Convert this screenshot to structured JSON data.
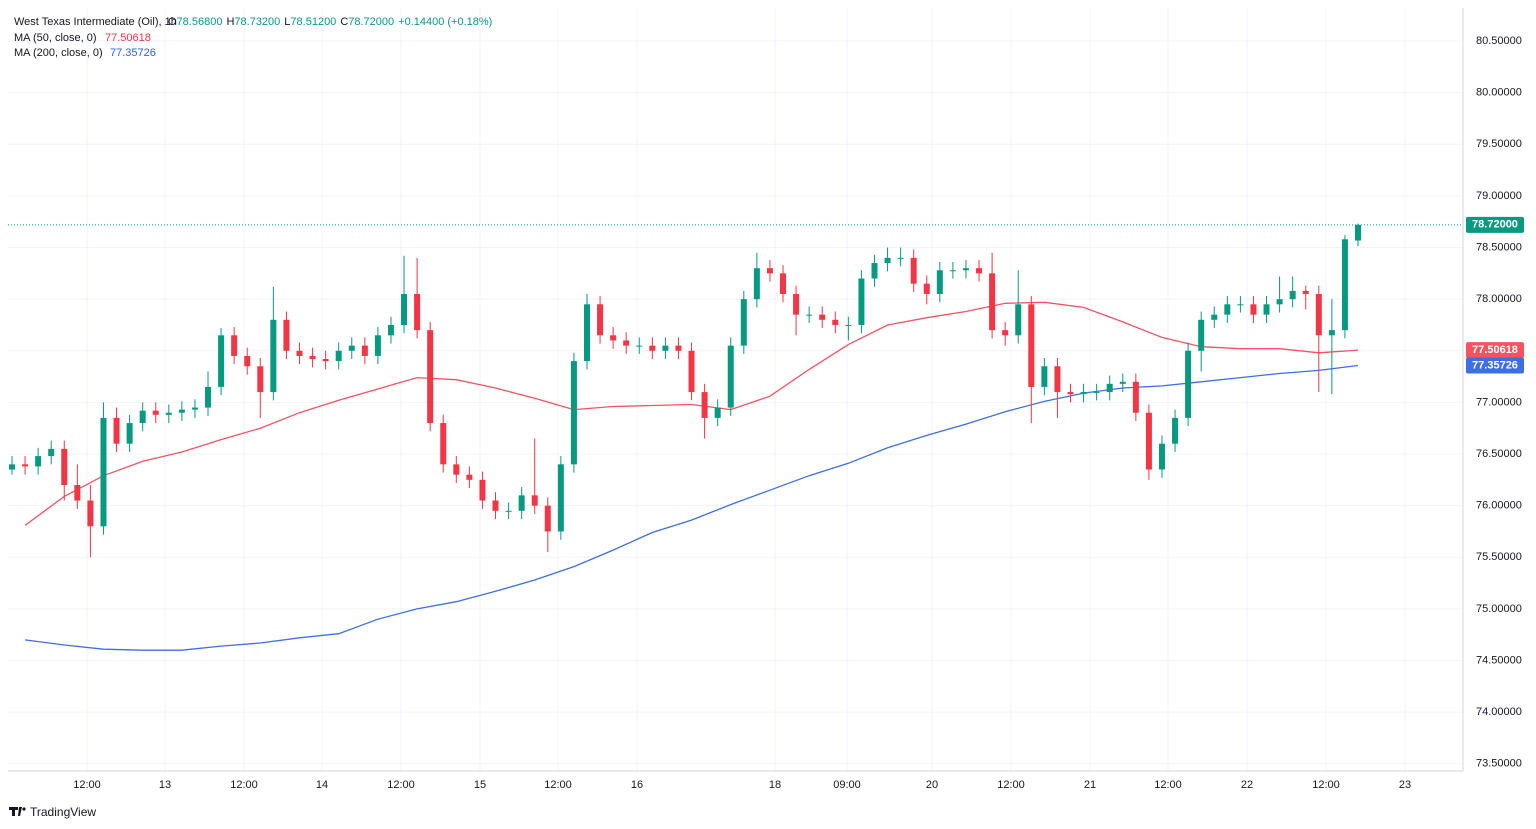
{
  "header": {
    "title": "West Texas Intermediate (Oil), 1h",
    "o_prefix": "O",
    "o": "78.56800",
    "h_prefix": "H",
    "h": "78.73200",
    "l_prefix": "L",
    "l": "78.51200",
    "c_prefix": "C",
    "c": "78.72000",
    "change": "+0.14400 (+0.18%)"
  },
  "footer": {
    "brand": "TradingView"
  },
  "chart_data": {
    "type": "candlestick",
    "up_color": "#089981",
    "down_color": "#f23645",
    "ylim": [
      73.43,
      80.82
    ],
    "yticks": [
      {
        "value": 73.5,
        "label": "73.50000"
      },
      {
        "value": 74,
        "label": "74.00000"
      },
      {
        "value": 74.5,
        "label": "74.50000"
      },
      {
        "value": 75,
        "label": "75.00000"
      },
      {
        "value": 75.5,
        "label": "75.50000"
      },
      {
        "value": 76,
        "label": "76.00000"
      },
      {
        "value": 76.5,
        "label": "76.50000"
      },
      {
        "value": 77,
        "label": "77.00000"
      },
      {
        "value": 77.5,
        "label": "77.50000"
      },
      {
        "value": 78,
        "label": "78.00000"
      },
      {
        "value": 78.5,
        "label": "78.50000"
      },
      {
        "value": 79,
        "label": "79.00000"
      },
      {
        "value": 79.5,
        "label": "79.50000"
      },
      {
        "value": 80,
        "label": "80.00000"
      },
      {
        "value": 80.5,
        "label": "80.50000"
      }
    ],
    "xticks": [
      "12:00",
      "13",
      "12:00",
      "14",
      "12:00",
      "15",
      "12:00",
      "16",
      "18",
      "09:00",
      "20",
      "12:00",
      "21",
      "12:00",
      "22",
      "12:00",
      "23"
    ],
    "grid": true,
    "last": {
      "value": 78.72,
      "label": "78.72000"
    },
    "candles": [
      [
        76.35,
        76.48,
        76.3,
        76.4
      ],
      [
        76.4,
        76.48,
        76.3,
        76.38
      ],
      [
        76.38,
        76.56,
        76.3,
        76.48
      ],
      [
        76.48,
        76.63,
        76.4,
        76.55
      ],
      [
        76.55,
        76.63,
        76.05,
        76.2
      ],
      [
        76.2,
        76.4,
        75.97,
        76.05
      ],
      [
        76.05,
        76.2,
        75.5,
        75.8
      ],
      [
        75.8,
        77.0,
        75.72,
        76.85
      ],
      [
        76.85,
        76.95,
        76.52,
        76.6
      ],
      [
        76.6,
        76.88,
        76.52,
        76.8
      ],
      [
        76.8,
        77.0,
        76.72,
        76.92
      ],
      [
        76.92,
        77.0,
        76.8,
        76.88
      ],
      [
        76.88,
        76.98,
        76.8,
        76.9
      ],
      [
        76.9,
        77.01,
        76.82,
        76.93
      ],
      [
        76.93,
        77.03,
        76.85,
        76.95
      ],
      [
        76.95,
        77.3,
        76.87,
        77.15
      ],
      [
        77.15,
        77.72,
        77.07,
        77.65
      ],
      [
        77.65,
        77.73,
        77.37,
        77.45
      ],
      [
        77.45,
        77.53,
        77.27,
        77.35
      ],
      [
        77.35,
        77.43,
        76.85,
        77.1
      ],
      [
        77.1,
        78.12,
        77.02,
        77.8
      ],
      [
        77.8,
        77.88,
        77.42,
        77.5
      ],
      [
        77.5,
        77.58,
        77.37,
        77.45
      ],
      [
        77.45,
        77.53,
        77.34,
        77.42
      ],
      [
        77.42,
        77.5,
        77.32,
        77.4
      ],
      [
        77.4,
        77.58,
        77.32,
        77.5
      ],
      [
        77.5,
        77.63,
        77.42,
        77.55
      ],
      [
        77.55,
        77.63,
        77.37,
        77.45
      ],
      [
        77.45,
        77.73,
        77.37,
        77.65
      ],
      [
        77.65,
        77.83,
        77.57,
        77.75
      ],
      [
        77.75,
        78.42,
        77.67,
        78.05
      ],
      [
        78.05,
        78.4,
        77.62,
        77.7
      ],
      [
        77.7,
        77.78,
        76.72,
        76.8
      ],
      [
        76.8,
        76.88,
        76.32,
        76.4
      ],
      [
        76.4,
        76.48,
        76.22,
        76.3
      ],
      [
        76.3,
        76.38,
        76.17,
        76.25
      ],
      [
        76.25,
        76.33,
        75.97,
        76.05
      ],
      [
        76.05,
        76.13,
        75.87,
        75.95
      ],
      [
        75.95,
        76.03,
        75.87,
        75.95
      ],
      [
        75.95,
        76.18,
        75.87,
        76.1
      ],
      [
        76.1,
        76.65,
        75.92,
        76.0
      ],
      [
        76.0,
        76.08,
        75.55,
        75.75
      ],
      [
        75.75,
        76.48,
        75.67,
        76.4
      ],
      [
        76.4,
        77.48,
        76.32,
        77.4
      ],
      [
        77.4,
        78.05,
        77.32,
        77.95
      ],
      [
        77.95,
        78.03,
        77.57,
        77.65
      ],
      [
        77.65,
        77.73,
        77.52,
        77.6
      ],
      [
        77.6,
        77.68,
        77.47,
        77.55
      ],
      [
        77.55,
        77.63,
        77.47,
        77.55
      ],
      [
        77.55,
        77.63,
        77.42,
        77.5
      ],
      [
        77.5,
        77.63,
        77.42,
        77.55
      ],
      [
        77.55,
        77.63,
        77.42,
        77.5
      ],
      [
        77.5,
        77.58,
        77.02,
        77.1
      ],
      [
        77.1,
        77.18,
        76.65,
        76.85
      ],
      [
        76.85,
        77.03,
        76.77,
        76.95
      ],
      [
        76.95,
        77.63,
        76.87,
        77.55
      ],
      [
        77.55,
        78.08,
        77.47,
        78.0
      ],
      [
        78.0,
        78.45,
        77.92,
        78.3
      ],
      [
        78.3,
        78.38,
        78.17,
        78.25
      ],
      [
        78.25,
        78.33,
        77.97,
        78.05
      ],
      [
        78.05,
        78.13,
        77.65,
        77.85
      ],
      [
        77.85,
        77.93,
        77.77,
        77.85
      ],
      [
        77.85,
        77.93,
        77.72,
        77.8
      ],
      [
        77.8,
        77.88,
        77.67,
        77.75
      ],
      [
        77.75,
        77.83,
        77.6,
        77.75
      ],
      [
        77.75,
        78.28,
        77.67,
        78.2
      ],
      [
        78.2,
        78.43,
        78.12,
        78.35
      ],
      [
        78.35,
        78.5,
        78.27,
        78.4
      ],
      [
        78.4,
        78.5,
        78.32,
        78.4
      ],
      [
        78.4,
        78.48,
        78.07,
        78.15
      ],
      [
        78.15,
        78.23,
        77.95,
        78.05
      ],
      [
        78.05,
        78.36,
        77.97,
        78.28
      ],
      [
        78.28,
        78.36,
        78.2,
        78.28
      ],
      [
        78.28,
        78.38,
        78.2,
        78.3
      ],
      [
        78.3,
        78.38,
        78.17,
        78.25
      ],
      [
        78.25,
        78.45,
        77.62,
        77.7
      ],
      [
        77.7,
        77.78,
        77.55,
        77.65
      ],
      [
        77.65,
        78.28,
        77.57,
        77.95
      ],
      [
        77.95,
        78.03,
        76.8,
        77.15
      ],
      [
        77.15,
        77.43,
        77.07,
        77.35
      ],
      [
        77.35,
        77.43,
        76.85,
        77.1
      ],
      [
        77.1,
        77.18,
        77.0,
        77.08
      ],
      [
        77.08,
        77.18,
        77.0,
        77.1
      ],
      [
        77.1,
        77.18,
        77.02,
        77.1
      ],
      [
        77.1,
        77.26,
        77.02,
        77.18
      ],
      [
        77.18,
        77.28,
        77.1,
        77.2
      ],
      [
        77.2,
        77.28,
        76.82,
        76.9
      ],
      [
        76.9,
        76.98,
        76.25,
        76.35
      ],
      [
        76.35,
        76.68,
        76.27,
        76.6
      ],
      [
        76.6,
        76.93,
        76.52,
        76.85
      ],
      [
        76.85,
        77.58,
        76.77,
        77.5
      ],
      [
        77.5,
        77.88,
        77.3,
        77.8
      ],
      [
        77.8,
        77.93,
        77.72,
        77.85
      ],
      [
        77.85,
        78.03,
        77.77,
        77.95
      ],
      [
        77.95,
        78.03,
        77.87,
        77.95
      ],
      [
        77.95,
        78.03,
        77.77,
        77.85
      ],
      [
        77.85,
        78.03,
        77.77,
        77.95
      ],
      [
        77.95,
        78.22,
        77.87,
        78.0
      ],
      [
        78.0,
        78.22,
        77.92,
        78.08
      ],
      [
        78.08,
        78.13,
        77.9,
        78.05
      ],
      [
        78.05,
        78.13,
        77.1,
        77.65
      ],
      [
        77.65,
        78.0,
        77.08,
        77.7
      ],
      [
        77.7,
        78.62,
        77.62,
        78.58
      ],
      [
        78.568,
        78.732,
        78.512,
        78.72
      ]
    ],
    "series": [
      {
        "name": "MA (50, close, 0)",
        "color": "#f7525f",
        "value_label": "77.50618",
        "values": [
          75.81,
          76.09,
          76.29,
          76.43,
          76.52,
          76.64,
          76.75,
          76.9,
          77.02,
          77.13,
          77.24,
          77.22,
          77.14,
          77.04,
          76.93,
          76.96,
          76.97,
          76.98,
          76.93,
          77.06,
          77.32,
          77.56,
          77.75,
          77.82,
          77.88,
          77.96,
          77.97,
          77.92,
          77.78,
          77.63,
          77.54,
          77.52,
          77.52,
          77.48,
          77.50618
        ]
      },
      {
        "name": "MA (200, close, 0)",
        "color": "#3d6fe0",
        "value_label": "77.35726",
        "values": [
          74.7,
          74.65,
          74.61,
          74.6,
          74.6,
          74.64,
          74.67,
          74.72,
          74.76,
          74.9,
          75.0,
          75.07,
          75.17,
          75.28,
          75.41,
          75.57,
          75.74,
          75.86,
          76.01,
          76.15,
          76.29,
          76.41,
          76.56,
          76.68,
          76.79,
          76.91,
          77.01,
          77.09,
          77.14,
          77.16,
          77.2,
          77.24,
          77.28,
          77.31,
          77.35726
        ]
      }
    ]
  }
}
